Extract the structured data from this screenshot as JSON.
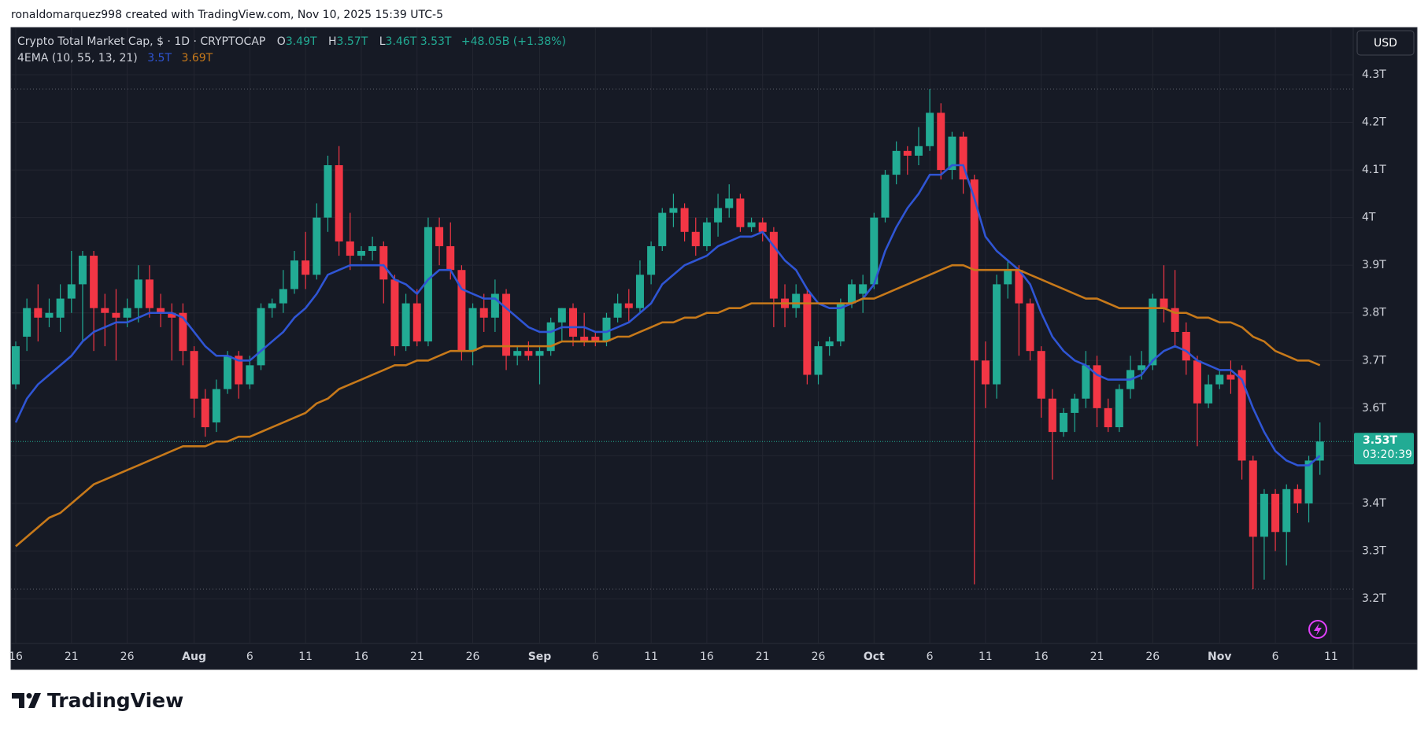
{
  "attribution": "ronaldomarquez998 created with TradingView.com, Nov 10, 2025 15:39 UTC-5",
  "logo": "TradingView",
  "chart_data": {
    "type": "candlestick",
    "title": "Crypto Total Market Cap, $ · 1D · CRYPTOCAP",
    "ohlc_legend": [
      {
        "label": "O",
        "value": "3.49T"
      },
      {
        "label": "H",
        "value": "3.57T"
      },
      {
        "label": "L",
        "value": "3.46T"
      },
      {
        "value": "3.53T"
      }
    ],
    "change": "+48.05B (+1.38%)",
    "indicator": "4EMA (10, 55, 13, 21)",
    "currency": "USD",
    "last_price": {
      "label": "3.53T",
      "countdown": "03:20:39"
    },
    "up_color": "#22ab94",
    "down_color": "#f23645",
    "grid": true,
    "ylim": [
      3.106,
      4.399
    ],
    "yticks": [
      {
        "value": 3.2,
        "label": "3.2T"
      },
      {
        "value": 3.3,
        "label": "3.3T"
      },
      {
        "value": 3.4,
        "label": "3.4T"
      },
      {
        "value": 3.5,
        "label": "3.5T"
      },
      {
        "value": 3.6,
        "label": "3.6T"
      },
      {
        "value": 3.7,
        "label": "3.7T"
      },
      {
        "value": 3.8,
        "label": "3.8T"
      },
      {
        "value": 3.9,
        "label": "3.9T"
      },
      {
        "value": 4,
        "label": "4T"
      },
      {
        "value": 4.1,
        "label": "4.1T"
      },
      {
        "value": 4.2,
        "label": "4.2T"
      },
      {
        "value": 4.3,
        "label": "4.3T"
      }
    ],
    "categories": [
      "16",
      null,
      null,
      null,
      null,
      "21",
      null,
      null,
      null,
      null,
      "26",
      null,
      null,
      null,
      null,
      null,
      "Aug",
      null,
      null,
      null,
      null,
      "6",
      null,
      null,
      null,
      null,
      "11",
      null,
      null,
      null,
      null,
      "16",
      null,
      null,
      null,
      null,
      "21",
      null,
      null,
      null,
      null,
      "26",
      null,
      null,
      null,
      null,
      null,
      "Sep",
      null,
      null,
      null,
      null,
      "6",
      null,
      null,
      null,
      null,
      "11",
      null,
      null,
      null,
      null,
      "16",
      null,
      null,
      null,
      null,
      "21",
      null,
      null,
      null,
      null,
      "26",
      null,
      null,
      null,
      null,
      "Oct",
      null,
      null,
      null,
      null,
      "6",
      null,
      null,
      null,
      null,
      "11",
      null,
      null,
      null,
      null,
      "16",
      null,
      null,
      null,
      null,
      "21",
      null,
      null,
      null,
      null,
      "26",
      null,
      null,
      null,
      null,
      null,
      "Nov",
      null,
      null,
      null,
      null,
      "6",
      null,
      null,
      null,
      null,
      "11"
    ],
    "open": [
      3.65,
      3.75,
      3.81,
      3.79,
      3.79,
      3.83,
      3.86,
      3.92,
      3.81,
      3.8,
      3.79,
      3.81,
      3.87,
      3.81,
      3.8,
      3.8,
      3.72,
      3.62,
      3.57,
      3.64,
      3.71,
      3.65,
      3.69,
      3.81,
      3.82,
      3.85,
      3.91,
      3.88,
      4.0,
      4.11,
      3.95,
      3.92,
      3.93,
      3.94,
      3.87,
      3.73,
      3.82,
      3.74,
      3.98,
      3.94,
      3.89,
      3.72,
      3.81,
      3.79,
      3.84,
      3.71,
      3.72,
      3.71,
      3.72,
      3.78,
      3.81,
      3.75,
      3.75,
      3.74,
      3.79,
      3.82,
      3.81,
      3.88,
      3.94,
      4.01,
      4.02,
      3.97,
      3.94,
      3.99,
      4.02,
      4.04,
      3.98,
      3.99,
      3.97,
      3.83,
      3.81,
      3.84,
      3.67,
      3.73,
      3.74,
      3.82,
      3.84,
      3.86,
      4.0,
      4.09,
      4.14,
      4.13,
      4.15,
      4.22,
      4.1,
      4.17,
      4.08,
      3.7,
      3.65,
      3.86,
      3.89,
      3.82,
      3.72,
      3.62,
      3.55,
      3.59,
      3.62,
      3.69,
      3.6,
      3.56,
      3.64,
      3.68,
      3.69,
      3.83,
      3.81,
      3.76,
      3.7,
      3.61,
      3.65,
      3.67,
      3.68,
      3.49,
      3.33,
      3.42,
      3.34,
      3.43,
      3.4,
      3.49,
      null
    ],
    "high": [
      3.74,
      3.83,
      3.86,
      3.83,
      3.86,
      3.93,
      3.93,
      3.93,
      3.84,
      3.85,
      3.83,
      3.9,
      3.9,
      3.84,
      3.82,
      3.82,
      3.73,
      3.64,
      3.66,
      3.72,
      3.72,
      3.71,
      3.82,
      3.83,
      3.89,
      3.93,
      3.97,
      4.03,
      4.13,
      4.15,
      4.01,
      3.94,
      3.96,
      3.95,
      3.88,
      3.84,
      3.85,
      4.0,
      4.0,
      3.99,
      3.9,
      3.82,
      3.84,
      3.87,
      3.85,
      3.73,
      3.74,
      3.73,
      3.79,
      3.81,
      3.82,
      3.8,
      3.76,
      3.8,
      3.84,
      3.85,
      3.91,
      3.95,
      4.02,
      4.05,
      4.03,
      4.0,
      4.0,
      4.05,
      4.07,
      4.05,
      4.0,
      4.0,
      3.98,
      3.86,
      3.86,
      3.85,
      3.74,
      3.75,
      3.83,
      3.87,
      3.88,
      4.01,
      4.1,
      4.16,
      4.15,
      4.19,
      4.27,
      4.24,
      4.18,
      4.18,
      4.09,
      3.74,
      3.88,
      3.91,
      3.9,
      3.83,
      3.73,
      3.64,
      3.6,
      3.63,
      3.72,
      3.71,
      3.62,
      3.65,
      3.71,
      3.72,
      3.84,
      3.9,
      3.89,
      3.78,
      3.71,
      3.67,
      3.68,
      3.7,
      3.69,
      3.5,
      3.43,
      3.43,
      3.44,
      3.44,
      3.5,
      3.57,
      null
    ],
    "low": [
      3.64,
      3.72,
      3.74,
      3.77,
      3.76,
      3.8,
      3.74,
      3.72,
      3.73,
      3.7,
      3.77,
      3.78,
      3.79,
      3.77,
      3.7,
      3.69,
      3.58,
      3.54,
      3.55,
      3.63,
      3.62,
      3.64,
      3.68,
      3.79,
      3.8,
      3.84,
      3.85,
      3.87,
      3.97,
      3.92,
      3.89,
      3.91,
      3.91,
      3.82,
      3.71,
      3.72,
      3.73,
      3.73,
      3.9,
      3.87,
      3.7,
      3.69,
      3.76,
      3.76,
      3.68,
      3.69,
      3.7,
      3.65,
      3.71,
      3.74,
      3.73,
      3.73,
      3.73,
      3.73,
      3.78,
      3.78,
      3.8,
      3.86,
      3.93,
      3.98,
      3.95,
      3.92,
      3.93,
      3.96,
      4.0,
      3.97,
      3.97,
      3.95,
      3.77,
      3.77,
      3.79,
      3.65,
      3.65,
      3.71,
      3.73,
      3.81,
      3.8,
      3.85,
      3.99,
      4.07,
      4.09,
      4.11,
      4.14,
      4.08,
      4.08,
      4.05,
      3.23,
      3.6,
      3.62,
      3.83,
      3.71,
      3.7,
      3.58,
      3.45,
      3.54,
      3.55,
      3.6,
      3.56,
      3.55,
      3.55,
      3.62,
      3.66,
      3.68,
      3.78,
      3.73,
      3.67,
      3.52,
      3.6,
      3.64,
      3.63,
      3.45,
      3.22,
      3.24,
      3.3,
      3.27,
      3.38,
      3.36,
      3.46,
      null
    ],
    "close": [
      3.73,
      3.81,
      3.79,
      3.8,
      3.83,
      3.86,
      3.92,
      3.81,
      3.8,
      3.79,
      3.81,
      3.87,
      3.81,
      3.8,
      3.79,
      3.72,
      3.62,
      3.56,
      3.64,
      3.71,
      3.65,
      3.69,
      3.81,
      3.82,
      3.85,
      3.91,
      3.88,
      4.0,
      4.11,
      3.95,
      3.92,
      3.93,
      3.94,
      3.87,
      3.73,
      3.82,
      3.74,
      3.98,
      3.94,
      3.89,
      3.72,
      3.81,
      3.79,
      3.84,
      3.71,
      3.72,
      3.71,
      3.72,
      3.78,
      3.81,
      3.75,
      3.74,
      3.74,
      3.79,
      3.82,
      3.81,
      3.88,
      3.94,
      4.01,
      4.02,
      3.97,
      3.94,
      3.99,
      4.02,
      4.04,
      3.98,
      3.99,
      3.97,
      3.83,
      3.81,
      3.84,
      3.67,
      3.73,
      3.74,
      3.82,
      3.86,
      3.86,
      4.0,
      4.09,
      4.14,
      4.13,
      4.15,
      4.22,
      4.1,
      4.17,
      4.08,
      3.7,
      3.65,
      3.86,
      3.89,
      3.82,
      3.72,
      3.62,
      3.55,
      3.59,
      3.62,
      3.69,
      3.6,
      3.56,
      3.64,
      3.68,
      3.69,
      3.83,
      3.81,
      3.76,
      3.7,
      3.61,
      3.65,
      3.67,
      3.66,
      3.49,
      3.33,
      3.42,
      3.34,
      3.43,
      3.4,
      3.49,
      3.53,
      null
    ],
    "series": [
      {
        "color": "#2f55d4",
        "legend_label": "3.5T",
        "values": [
          3.57,
          3.62,
          3.65,
          3.67,
          3.69,
          3.71,
          3.74,
          3.76,
          3.77,
          3.78,
          3.78,
          3.79,
          3.8,
          3.8,
          3.8,
          3.79,
          3.76,
          3.73,
          3.71,
          3.71,
          3.7,
          3.7,
          3.72,
          3.74,
          3.76,
          3.79,
          3.81,
          3.84,
          3.88,
          3.89,
          3.9,
          3.9,
          3.9,
          3.9,
          3.87,
          3.86,
          3.84,
          3.87,
          3.89,
          3.89,
          3.85,
          3.84,
          3.83,
          3.83,
          3.81,
          3.79,
          3.77,
          3.76,
          3.76,
          3.77,
          3.77,
          3.77,
          3.76,
          3.76,
          3.77,
          3.78,
          3.8,
          3.82,
          3.86,
          3.88,
          3.9,
          3.91,
          3.92,
          3.94,
          3.95,
          3.96,
          3.96,
          3.97,
          3.94,
          3.91,
          3.89,
          3.85,
          3.82,
          3.81,
          3.81,
          3.82,
          3.83,
          3.86,
          3.93,
          3.98,
          4.02,
          4.05,
          4.09,
          4.09,
          4.11,
          4.11,
          4.04,
          3.96,
          3.93,
          3.91,
          3.89,
          3.86,
          3.8,
          3.75,
          3.72,
          3.7,
          3.69,
          3.67,
          3.66,
          3.66,
          3.66,
          3.67,
          3.7,
          3.72,
          3.73,
          3.72,
          3.7,
          3.69,
          3.68,
          3.68,
          3.66,
          3.6,
          3.55,
          3.51,
          3.49,
          3.48,
          3.48,
          3.5,
          null
        ]
      },
      {
        "color": "#c7791a",
        "legend_label": "3.69T",
        "values": [
          3.31,
          3.33,
          3.35,
          3.37,
          3.38,
          3.4,
          3.42,
          3.44,
          3.45,
          3.46,
          3.47,
          3.48,
          3.49,
          3.5,
          3.51,
          3.52,
          3.52,
          3.52,
          3.53,
          3.53,
          3.54,
          3.54,
          3.55,
          3.56,
          3.57,
          3.58,
          3.59,
          3.61,
          3.62,
          3.64,
          3.65,
          3.66,
          3.67,
          3.68,
          3.69,
          3.69,
          3.7,
          3.7,
          3.71,
          3.72,
          3.72,
          3.72,
          3.73,
          3.73,
          3.73,
          3.73,
          3.73,
          3.73,
          3.73,
          3.74,
          3.74,
          3.74,
          3.74,
          3.74,
          3.75,
          3.75,
          3.76,
          3.77,
          3.78,
          3.78,
          3.79,
          3.79,
          3.8,
          3.8,
          3.81,
          3.81,
          3.82,
          3.82,
          3.82,
          3.82,
          3.82,
          3.82,
          3.82,
          3.82,
          3.82,
          3.82,
          3.83,
          3.83,
          3.84,
          3.85,
          3.86,
          3.87,
          3.88,
          3.89,
          3.9,
          3.9,
          3.89,
          3.89,
          3.89,
          3.89,
          3.89,
          3.88,
          3.87,
          3.86,
          3.85,
          3.84,
          3.83,
          3.83,
          3.82,
          3.81,
          3.81,
          3.81,
          3.81,
          3.81,
          3.8,
          3.8,
          3.79,
          3.79,
          3.78,
          3.78,
          3.77,
          3.75,
          3.74,
          3.72,
          3.71,
          3.7,
          3.7,
          3.69,
          null
        ]
      }
    ]
  }
}
